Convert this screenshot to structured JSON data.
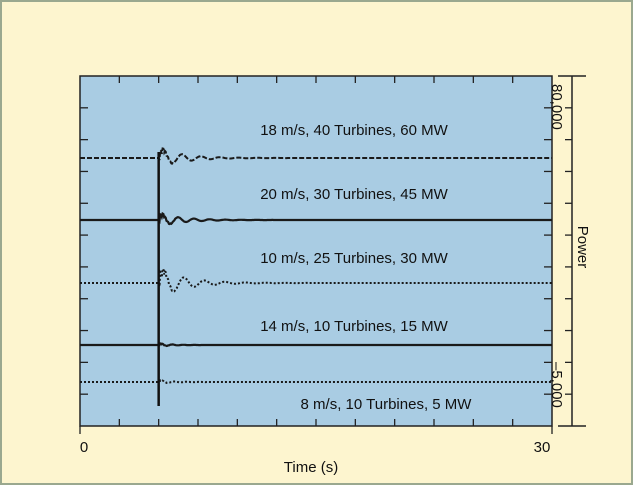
{
  "chart_data": {
    "type": "line",
    "xlabel": "Time (s)",
    "ylabel": "Power",
    "x_ticks": [
      "0",
      "30"
    ],
    "xlim": [
      0,
      30
    ],
    "y_ticks": [
      "80,000",
      "–5,000"
    ],
    "disturbance_time_s": 5,
    "grid": false,
    "series": [
      {
        "name": "18 m/s, 40 Turbines, 60 MW",
        "baseline": 60,
        "peak_deviation": 6,
        "style": "dashed"
      },
      {
        "name": "20 m/s, 30 Turbines, 45 MW",
        "baseline": 45,
        "peak_deviation": 4,
        "style": "solid"
      },
      {
        "name": "10 m/s, 25 Turbines, 30 MW",
        "baseline": 30,
        "peak_deviation": 9,
        "style": "dotted"
      },
      {
        "name": "14 m/s, 10 Turbines, 15 MW",
        "baseline": 15,
        "peak_deviation": 1,
        "style": "solid"
      },
      {
        "name": "8 m/s, 10 Turbines, 5 MW",
        "baseline": 5,
        "peak_deviation": 1,
        "style": "dotted"
      }
    ],
    "colors": {
      "plot_bg": "#a9cce3",
      "frame_bg": "#fdf5cf",
      "frame_border": "#9aa88f",
      "line": "#1a1a1a"
    }
  }
}
